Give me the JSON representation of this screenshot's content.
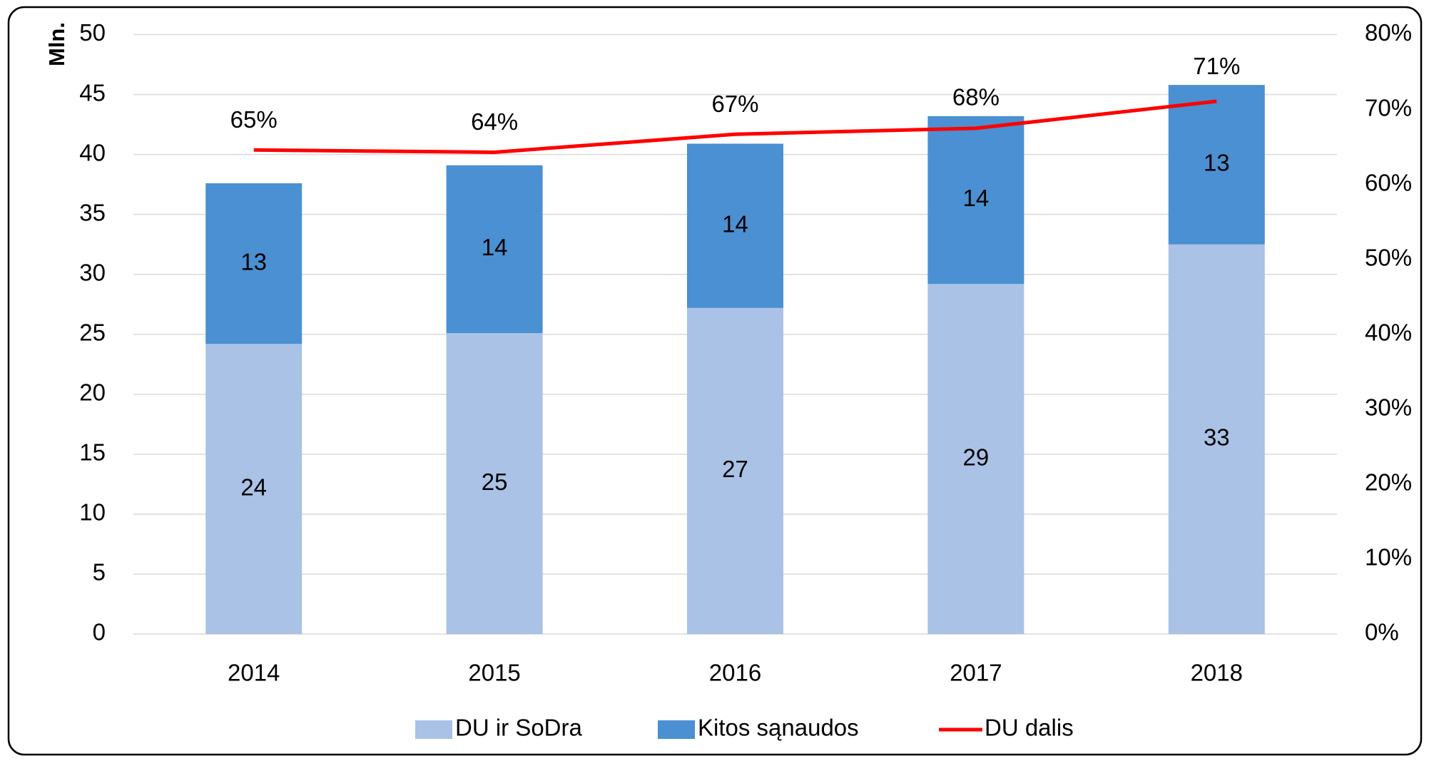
{
  "chart_data": {
    "type": "bar",
    "y_axis_label": "Mln.",
    "categories": [
      "2014",
      "2015",
      "2016",
      "2017",
      "2018"
    ],
    "series": [
      {
        "name": "DU ir SoDra",
        "color": "#a9c2e6",
        "values": [
          24.2,
          25.1,
          27.2,
          29.2,
          32.5
        ],
        "value_labels": [
          "24",
          "25",
          "27",
          "29",
          "33"
        ]
      },
      {
        "name": "Kitos sąnaudos",
        "color": "#4a90d2",
        "values": [
          13.4,
          14.0,
          13.7,
          14.0,
          13.3
        ],
        "value_labels": [
          "13",
          "14",
          "14",
          "14",
          "13"
        ]
      },
      {
        "name": "DU dalis",
        "type": "line",
        "axis": "y2",
        "color": "#ff0000",
        "values": [
          64.6,
          64.3,
          66.7,
          67.5,
          71.1
        ],
        "value_labels": [
          "65%",
          "64%",
          "67%",
          "68%",
          "71%"
        ]
      }
    ],
    "ylim": [
      0,
      50
    ],
    "yticks": [
      0,
      5,
      10,
      15,
      20,
      25,
      30,
      35,
      40,
      45,
      50
    ],
    "y2lim": [
      0,
      80
    ],
    "y2ticks": [
      {
        "value": 0,
        "label": "0%"
      },
      {
        "value": 10,
        "label": "10%"
      },
      {
        "value": 20,
        "label": "20%"
      },
      {
        "value": 30,
        "label": "30%"
      },
      {
        "value": 40,
        "label": "40%"
      },
      {
        "value": 50,
        "label": "50%"
      },
      {
        "value": 60,
        "label": "60%"
      },
      {
        "value": 70,
        "label": "70%"
      },
      {
        "value": 80,
        "label": "80%"
      }
    ],
    "grid": true,
    "stacked": true,
    "legend": "bottom"
  }
}
